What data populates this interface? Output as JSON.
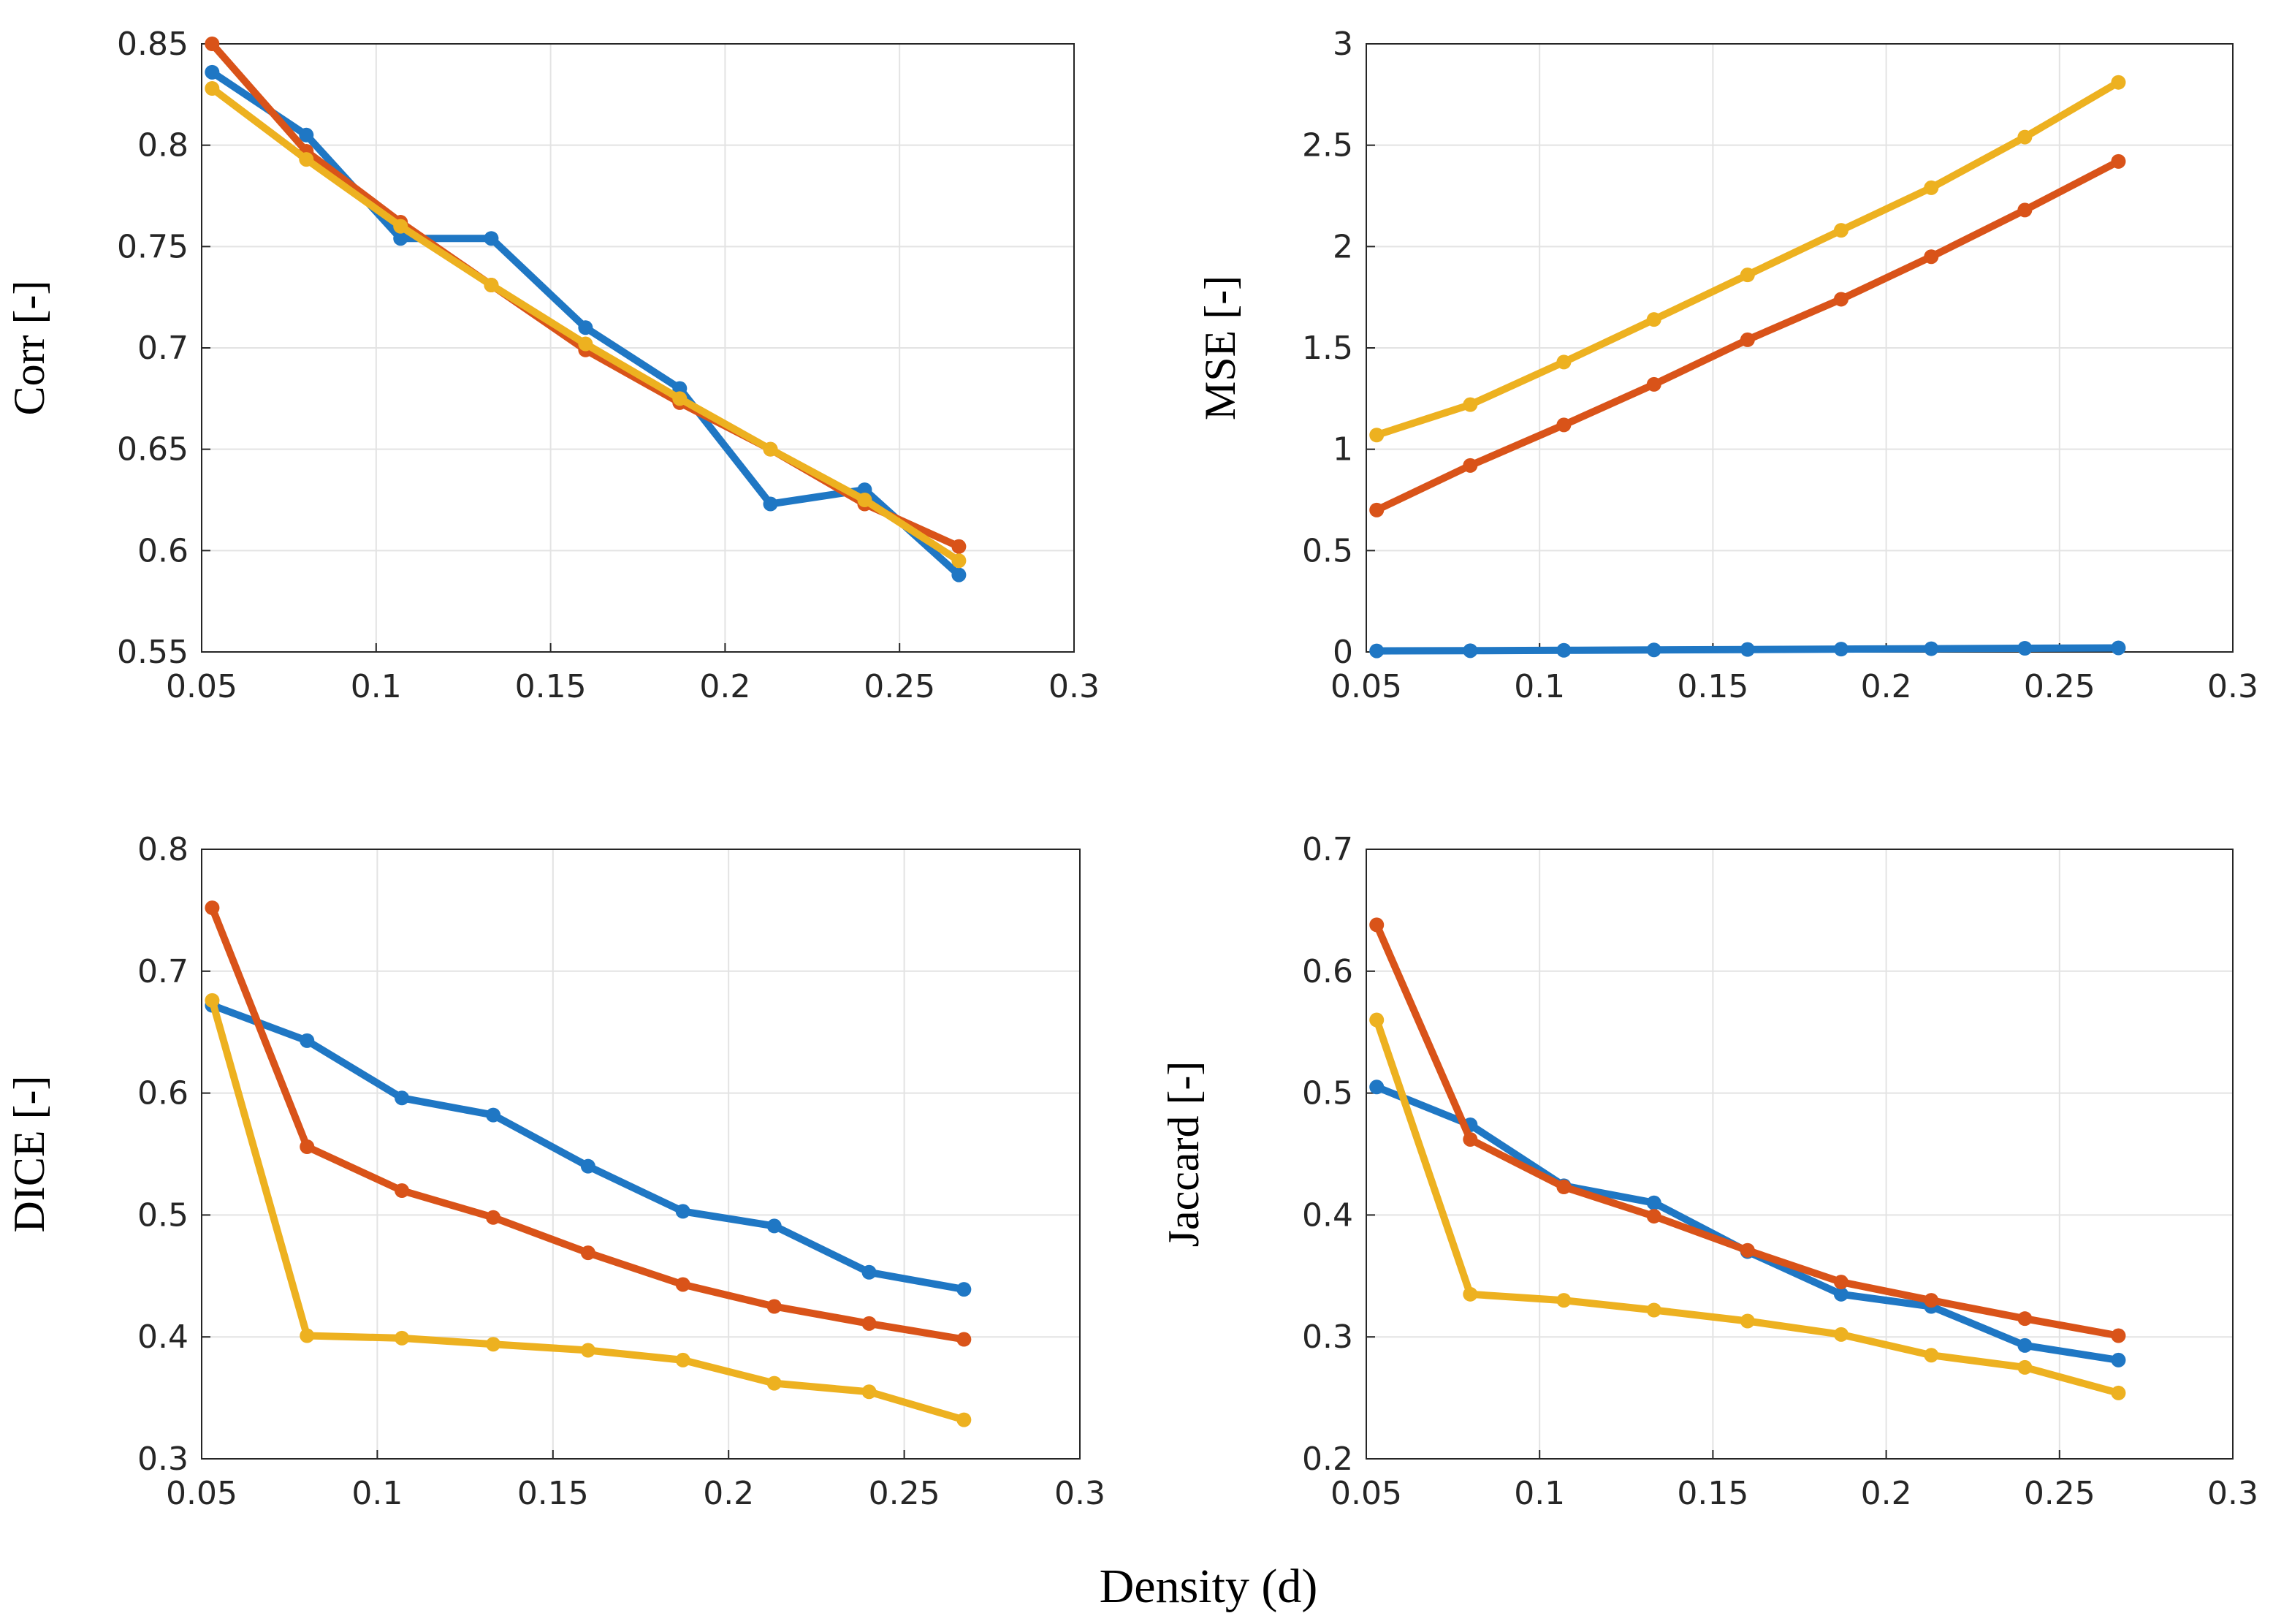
{
  "figure": {
    "xlabel": "Density (d)"
  },
  "chart_data": [
    {
      "type": "line",
      "ylabel": "Corr [-]",
      "xlim": [
        0.05,
        0.3
      ],
      "ylim": [
        0.55,
        0.85
      ],
      "xticks": [
        0.05,
        0.1,
        0.15,
        0.2,
        0.25,
        0.3
      ],
      "xtick_labels": [
        "0.05",
        "0.1",
        "0.15",
        "0.2",
        "0.25",
        "0.3"
      ],
      "yticks": [
        0.55,
        0.6,
        0.65,
        0.7,
        0.75,
        0.8,
        0.85
      ],
      "ytick_labels": [
        "0.55",
        "0.6",
        "0.65",
        "0.7",
        "0.75",
        "0.8",
        "0.85"
      ],
      "grid": true,
      "x": [
        0.053,
        0.08,
        0.107,
        0.133,
        0.16,
        0.187,
        0.213,
        0.24,
        0.267
      ],
      "series": [
        {
          "color": "#1f77c4",
          "values": [
            0.836,
            0.805,
            0.754,
            0.754,
            0.71,
            0.68,
            0.623,
            0.63,
            0.588
          ]
        },
        {
          "color": "#d95319",
          "values": [
            0.85,
            0.797,
            0.762,
            0.731,
            0.699,
            0.673,
            0.65,
            0.623,
            0.602
          ]
        },
        {
          "color": "#edb120",
          "values": [
            0.828,
            0.793,
            0.76,
            0.731,
            0.702,
            0.675,
            0.65,
            0.625,
            0.595
          ]
        }
      ]
    },
    {
      "type": "line",
      "ylabel": "MSE [-]",
      "xlim": [
        0.05,
        0.3
      ],
      "ylim": [
        0,
        3
      ],
      "xticks": [
        0.05,
        0.1,
        0.15,
        0.2,
        0.25,
        0.3
      ],
      "xtick_labels": [
        "0.05",
        "0.1",
        "0.15",
        "0.2",
        "0.25",
        "0.3"
      ],
      "yticks": [
        0,
        0.5,
        1,
        1.5,
        2,
        2.5,
        3
      ],
      "ytick_labels": [
        "0",
        "0.5",
        "1",
        "1.5",
        "2",
        "2.5",
        "3"
      ],
      "grid": true,
      "x": [
        0.053,
        0.08,
        0.107,
        0.133,
        0.16,
        0.187,
        0.213,
        0.24,
        0.267
      ],
      "series": [
        {
          "color": "#1f77c4",
          "values": [
            0.005,
            0.006,
            0.008,
            0.01,
            0.012,
            0.014,
            0.016,
            0.018,
            0.02
          ]
        },
        {
          "color": "#d95319",
          "values": [
            0.7,
            0.92,
            1.12,
            1.32,
            1.54,
            1.74,
            1.95,
            2.18,
            2.42
          ]
        },
        {
          "color": "#edb120",
          "values": [
            1.07,
            1.22,
            1.43,
            1.64,
            1.86,
            2.08,
            2.29,
            2.54,
            2.81
          ]
        }
      ]
    },
    {
      "type": "line",
      "ylabel": "DICE [-]",
      "xlim": [
        0.05,
        0.3
      ],
      "ylim": [
        0.3,
        0.8
      ],
      "xticks": [
        0.05,
        0.1,
        0.15,
        0.2,
        0.25,
        0.3
      ],
      "xtick_labels": [
        "0.05",
        "0.1",
        "0.15",
        "0.2",
        "0.25",
        "0.3"
      ],
      "yticks": [
        0.3,
        0.4,
        0.5,
        0.6,
        0.7,
        0.8
      ],
      "ytick_labels": [
        "0.3",
        "0.4",
        "0.5",
        "0.6",
        "0.7",
        "0.8"
      ],
      "grid": true,
      "x": [
        0.053,
        0.08,
        0.107,
        0.133,
        0.16,
        0.187,
        0.213,
        0.24,
        0.267
      ],
      "series": [
        {
          "color": "#1f77c4",
          "values": [
            0.672,
            0.643,
            0.596,
            0.582,
            0.54,
            0.503,
            0.491,
            0.453,
            0.439
          ]
        },
        {
          "color": "#d95319",
          "values": [
            0.752,
            0.556,
            0.52,
            0.498,
            0.469,
            0.443,
            0.425,
            0.411,
            0.398
          ]
        },
        {
          "color": "#edb120",
          "values": [
            0.676,
            0.401,
            0.399,
            0.394,
            0.389,
            0.381,
            0.362,
            0.355,
            0.332
          ]
        }
      ]
    },
    {
      "type": "line",
      "ylabel": "Jaccard [-]",
      "xlim": [
        0.05,
        0.3
      ],
      "ylim": [
        0.2,
        0.7
      ],
      "xticks": [
        0.05,
        0.1,
        0.15,
        0.2,
        0.25,
        0.3
      ],
      "xtick_labels": [
        "0.05",
        "0.1",
        "0.15",
        "0.2",
        "0.25",
        "0.3"
      ],
      "yticks": [
        0.2,
        0.3,
        0.4,
        0.5,
        0.6,
        0.7
      ],
      "ytick_labels": [
        "0.2",
        "0.3",
        "0.4",
        "0.5",
        "0.6",
        "0.7"
      ],
      "grid": true,
      "x": [
        0.053,
        0.08,
        0.107,
        0.133,
        0.16,
        0.187,
        0.213,
        0.24,
        0.267
      ],
      "series": [
        {
          "color": "#1f77c4",
          "values": [
            0.505,
            0.474,
            0.424,
            0.41,
            0.37,
            0.335,
            0.325,
            0.293,
            0.281
          ]
        },
        {
          "color": "#d95319",
          "values": [
            0.638,
            0.462,
            0.423,
            0.399,
            0.371,
            0.345,
            0.33,
            0.315,
            0.301
          ]
        },
        {
          "color": "#edb120",
          "values": [
            0.56,
            0.335,
            0.33,
            0.322,
            0.313,
            0.302,
            0.285,
            0.275,
            0.254
          ]
        }
      ]
    }
  ]
}
